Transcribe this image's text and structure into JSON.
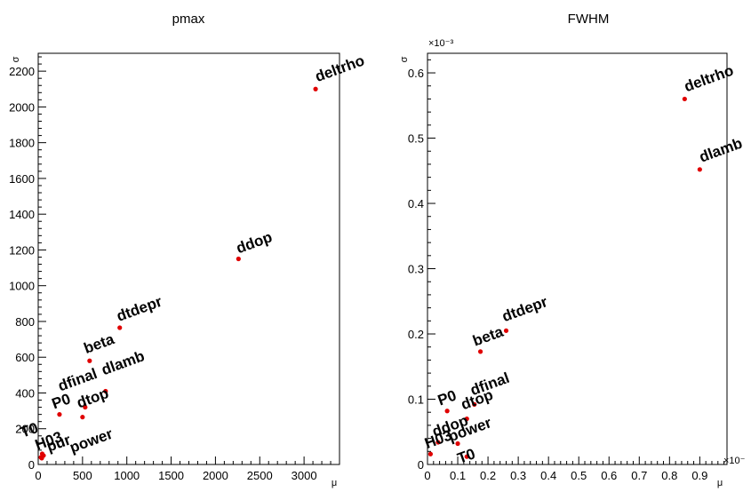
{
  "chart_data": [
    {
      "type": "scatter",
      "title": "pmax",
      "xlabel": "μ",
      "ylabel": "σ",
      "xlim": [
        0,
        3400
      ],
      "ylim": [
        0,
        2300
      ],
      "xticks": [
        0,
        500,
        1000,
        1500,
        2000,
        2500,
        3000
      ],
      "yticks": [
        0,
        200,
        400,
        600,
        800,
        1000,
        1200,
        1400,
        1600,
        1800,
        2000,
        2200
      ],
      "x_tick_labels": [
        "0",
        "500",
        "1000",
        "1500",
        "2000",
        "2500",
        "3000"
      ],
      "y_tick_labels": [
        "0",
        "200",
        "400",
        "600",
        "800",
        "1000",
        "1200",
        "1400",
        "1600",
        "1800",
        "2000",
        "2200"
      ],
      "multiplier_x": "",
      "multiplier_y": "",
      "marker_color": "#e00000",
      "points": [
        {
          "label": "deltrho",
          "x": 3130,
          "y": 2100
        },
        {
          "label": "ddop",
          "x": 2260,
          "y": 1150
        },
        {
          "label": "dtdepr",
          "x": 920,
          "y": 765
        },
        {
          "label": "beta",
          "x": 580,
          "y": 580
        },
        {
          "label": "dlamb",
          "x": 760,
          "y": 410
        },
        {
          "label": "dfinal",
          "x": 530,
          "y": 320
        },
        {
          "label": "P0",
          "x": 240,
          "y": 280
        },
        {
          "label": "dtop",
          "x": 500,
          "y": 265
        },
        {
          "label": "T0",
          "x": 45,
          "y": 60
        },
        {
          "label": "H03",
          "x": 30,
          "y": 40
        },
        {
          "label": "pur",
          "x": 60,
          "y": 50
        },
        {
          "label": "power",
          "x": 40,
          "y": 35
        }
      ]
    },
    {
      "type": "scatter",
      "title": "FWHM",
      "xlabel": "μ",
      "ylabel": "σ",
      "xlim": [
        0,
        0.99
      ],
      "ylim": [
        0,
        0.63
      ],
      "xticks": [
        0,
        0.1,
        0.2,
        0.3,
        0.4,
        0.5,
        0.6,
        0.7,
        0.8,
        0.9
      ],
      "yticks": [
        0,
        0.1,
        0.2,
        0.3,
        0.4,
        0.5,
        0.6
      ],
      "x_tick_labels": [
        "0",
        "0.1",
        "0.2",
        "0.3",
        "0.4",
        "0.5",
        "0.6",
        "0.7",
        "0.8",
        "0.9"
      ],
      "y_tick_labels": [
        "0",
        "0.1",
        "0.2",
        "0.3",
        "0.4",
        "0.5",
        "0.6"
      ],
      "multiplier_x": "×10⁻",
      "multiplier_y": "×10⁻³",
      "marker_color": "#e00000",
      "points": [
        {
          "label": "deltrho",
          "x": 0.85,
          "y": 0.56
        },
        {
          "label": "dlamb",
          "x": 0.9,
          "y": 0.452
        },
        {
          "label": "dtdepr",
          "x": 0.26,
          "y": 0.205
        },
        {
          "label": "beta",
          "x": 0.175,
          "y": 0.173
        },
        {
          "label": "dfinal",
          "x": 0.155,
          "y": 0.092
        },
        {
          "label": "P0",
          "x": 0.065,
          "y": 0.082
        },
        {
          "label": "dtop",
          "x": 0.13,
          "y": 0.07
        },
        {
          "label": "ddop",
          "x": 0.035,
          "y": 0.034
        },
        {
          "label": "power",
          "x": 0.1,
          "y": 0.032
        },
        {
          "label": "H03",
          "x": 0.01,
          "y": 0.016
        },
        {
          "label": "T0",
          "x": 0.13,
          "y": 0.012
        }
      ]
    }
  ]
}
